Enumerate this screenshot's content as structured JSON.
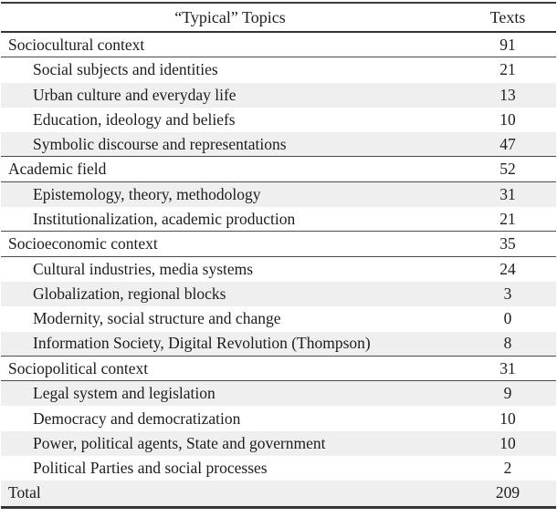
{
  "table": {
    "header": {
      "topics_label": "“Typical” Topics",
      "texts_label": "Texts"
    },
    "rows": [
      {
        "label": "Sociocultural context",
        "value": "91",
        "level": "category"
      },
      {
        "label": "Social subjects and identities",
        "value": "21",
        "level": "sub"
      },
      {
        "label": "Urban culture and everyday life",
        "value": "13",
        "level": "sub"
      },
      {
        "label": "Education, ideology and beliefs",
        "value": "10",
        "level": "sub"
      },
      {
        "label": "Symbolic discourse and representations",
        "value": "47",
        "level": "sub"
      },
      {
        "label": "Academic field",
        "value": "52",
        "level": "category"
      },
      {
        "label": "Epistemology, theory, methodology",
        "value": "31",
        "level": "sub"
      },
      {
        "label": "Institutionalization, academic production",
        "value": "21",
        "level": "sub"
      },
      {
        "label": "Socioeconomic context",
        "value": "35",
        "level": "category"
      },
      {
        "label": "Cultural industries, media systems",
        "value": "24",
        "level": "sub"
      },
      {
        "label": "Globalization, regional blocks",
        "value": "3",
        "level": "sub"
      },
      {
        "label": "Modernity, social structure and change",
        "value": "0",
        "level": "sub"
      },
      {
        "label": "Information Society, Digital Revolution (Thompson)",
        "value": "8",
        "level": "sub"
      },
      {
        "label": "Sociopolitical context",
        "value": "31",
        "level": "category"
      },
      {
        "label": "Legal system and legislation",
        "value": "9",
        "level": "sub"
      },
      {
        "label": "Democracy and democratization",
        "value": "10",
        "level": "sub"
      },
      {
        "label": "Power, political agents, State and government",
        "value": "10",
        "level": "sub"
      },
      {
        "label": "Political Parties and social processes",
        "value": "2",
        "level": "sub"
      },
      {
        "label": "Total",
        "value": "209",
        "level": "total"
      }
    ],
    "colors": {
      "row_shade": "#efefef",
      "rule_heavy": "#343434",
      "rule_light": "#4c4c4c",
      "text": "#1d1d1d",
      "background": "#ffffff"
    }
  },
  "chart_data": {
    "type": "table",
    "title": "",
    "columns": [
      "“Typical” Topics",
      "Texts"
    ],
    "rows": [
      [
        "Sociocultural context",
        91
      ],
      [
        "Social subjects and identities",
        21
      ],
      [
        "Urban culture and everyday life",
        13
      ],
      [
        "Education, ideology and beliefs",
        10
      ],
      [
        "Symbolic discourse and representations",
        47
      ],
      [
        "Academic field",
        52
      ],
      [
        "Epistemology, theory, methodology",
        31
      ],
      [
        "Institutionalization, academic production",
        21
      ],
      [
        "Socioeconomic context",
        35
      ],
      [
        "Cultural industries, media systems",
        24
      ],
      [
        "Globalization, regional blocks",
        3
      ],
      [
        "Modernity, social structure and change",
        0
      ],
      [
        "Information Society, Digital Revolution (Thompson)",
        8
      ],
      [
        "Sociopolitical context",
        31
      ],
      [
        "Legal system and legislation",
        9
      ],
      [
        "Democracy and democratization",
        10
      ],
      [
        "Power, political agents, State and government",
        10
      ],
      [
        "Political Parties and social processes",
        2
      ],
      [
        "Total",
        209
      ]
    ]
  }
}
